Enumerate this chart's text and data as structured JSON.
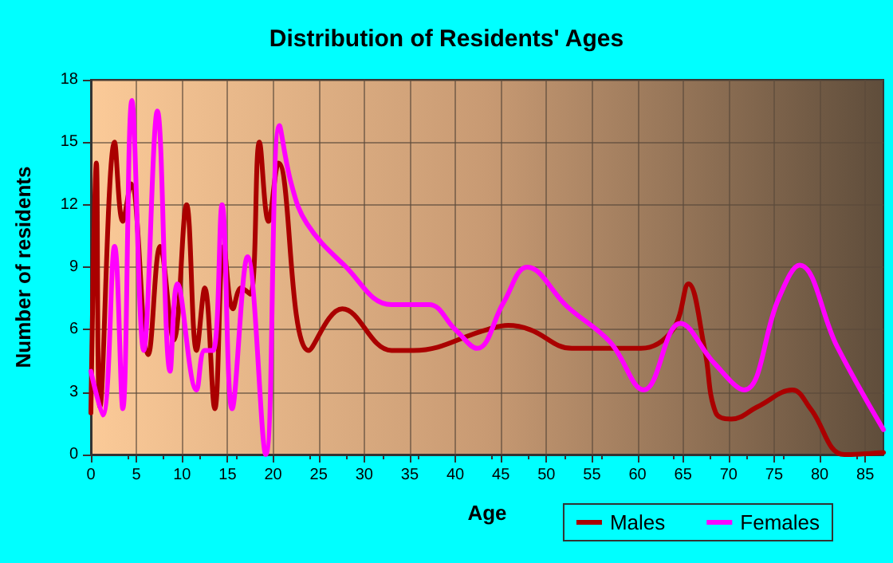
{
  "chart_data": {
    "type": "line",
    "title": "Distribution of Residents' Ages",
    "xlabel": "Age",
    "ylabel": "Number of residents",
    "xlim": [
      0,
      87
    ],
    "xticks": [
      0,
      5,
      10,
      15,
      20,
      25,
      30,
      35,
      40,
      45,
      50,
      55,
      60,
      65,
      70,
      75,
      80,
      85
    ],
    "ylim": [
      0,
      18
    ],
    "yticks": [
      0,
      3,
      6,
      9,
      12,
      15,
      18
    ],
    "grid": true,
    "legend": "bottom right",
    "marker": "none",
    "line_style": "solid",
    "series": [
      {
        "name": "Males",
        "color": "#aa0000",
        "x": [
          0,
          0.6,
          1.0,
          2.6,
          3.5,
          4.4,
          6.3,
          7.6,
          9.1,
          10.5,
          11.6,
          12.5,
          13.6,
          14.6,
          15.6,
          16.5,
          17.5,
          18.5,
          19.5,
          20.6,
          23.9,
          27.6,
          33,
          35.4,
          43.5,
          45.8,
          48.2,
          52.8,
          57,
          60.4,
          63.9,
          65.6,
          67.4,
          68.6,
          70.3,
          73.2,
          77,
          79,
          82.7,
          87
        ],
        "values": [
          2,
          14,
          2.3,
          15,
          11.2,
          13,
          4.8,
          10,
          5.5,
          12,
          5,
          8,
          2.2,
          10,
          7,
          8,
          7.7,
          15,
          11.2,
          14,
          5,
          7,
          5,
          5,
          6,
          6.2,
          6,
          5.1,
          5.1,
          5.1,
          6,
          8.2,
          5,
          2,
          1.7,
          2.3,
          3.1,
          2.2,
          0,
          0.1
        ]
      },
      {
        "name": "Females",
        "color": "#ff00ff",
        "x": [
          0,
          1.3,
          2.6,
          3.5,
          4.5,
          5.8,
          7.3,
          8.7,
          9.5,
          11.6,
          12.5,
          13.4,
          14.4,
          15.5,
          17.2,
          19.2,
          20.7,
          22,
          23.7,
          27.8,
          33,
          37.1,
          40,
          42.4,
          45.3,
          47.9,
          52.3,
          57,
          60.7,
          64.7,
          68.4,
          71.7,
          75.5,
          77.8,
          81.9,
          87
        ],
        "values": [
          4,
          1.9,
          10,
          2.2,
          17,
          5,
          16.5,
          4,
          8.2,
          3.1,
          5,
          5,
          12,
          2.2,
          9.5,
          0,
          15.8,
          13,
          11.1,
          9.1,
          7.2,
          7.2,
          6,
          5.1,
          7.3,
          9,
          7.1,
          5.4,
          3.1,
          6.3,
          4.4,
          3.1,
          7.5,
          9.1,
          5.2,
          1.2
        ]
      }
    ]
  }
}
